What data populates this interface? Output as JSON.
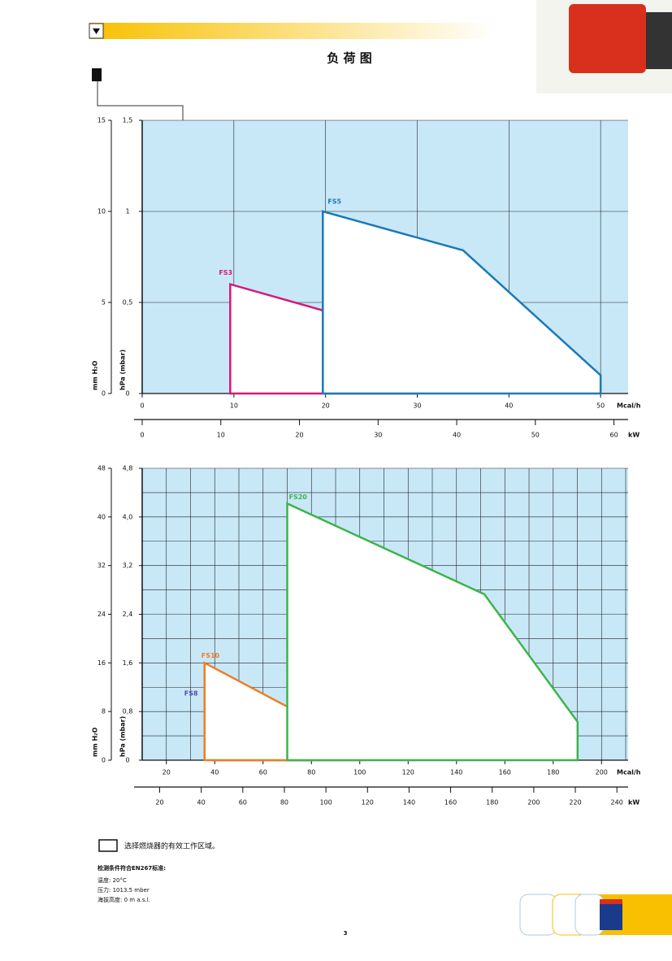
{
  "header": {
    "title": "负 荷 图"
  },
  "chart_data": [
    {
      "type": "line",
      "xlabel": "Mcal/h",
      "x2label": "kW",
      "ylabel": "hPa (mbar)",
      "y2label": "mm H₂O",
      "xlim": [
        0,
        53
      ],
      "xticks": [
        0,
        10,
        20,
        30,
        40,
        50
      ],
      "x2lim": [
        0,
        61.8
      ],
      "x2ticks": [
        0,
        10,
        20,
        30,
        40,
        50,
        60
      ],
      "ylim": [
        0,
        1.5
      ],
      "yticks": [
        0,
        {
          "value": 0.5,
          "label": "0,5"
        },
        1,
        {
          "value": 1.5,
          "label": "1,5"
        }
      ],
      "y2lim": [
        0,
        15
      ],
      "y2ticks": [
        0,
        5,
        10,
        15
      ],
      "grid": true,
      "background": "#c8e8f8",
      "series": [
        {
          "name": "FS3",
          "color": "#d4187c",
          "x": [
            9.6,
            9.6,
            30,
            30
          ],
          "values": [
            0,
            0.6,
            0.31,
            0
          ]
        },
        {
          "name": "FS5",
          "color": "#1a7ab8",
          "x": [
            19.7,
            19.7,
            35,
            50,
            50
          ],
          "values": [
            0,
            1.0,
            0.786,
            0.1,
            0
          ]
        }
      ]
    },
    {
      "type": "line",
      "xlabel": "Mcal/h",
      "x2label": "kW",
      "ylabel": "hPa (mbar)",
      "y2label": "mm H₂O",
      "xlim": [
        10,
        211
      ],
      "xticks": [
        20,
        40,
        60,
        80,
        100,
        120,
        140,
        160,
        180,
        200
      ],
      "x2lim": [
        11.6,
        245.4
      ],
      "x2ticks": [
        20,
        40,
        60,
        80,
        100,
        120,
        140,
        160,
        180,
        200,
        220,
        240
      ],
      "ylim": [
        0,
        4.8
      ],
      "yticks": [
        0,
        {
          "value": 0.8,
          "label": "0,8"
        },
        {
          "value": 1.6,
          "label": "1,6"
        },
        {
          "value": 2.4,
          "label": "2,4"
        },
        {
          "value": 3.2,
          "label": "3,2"
        },
        {
          "value": 4.0,
          "label": "4,0"
        },
        {
          "value": 4.8,
          "label": "4,8"
        }
      ],
      "y2lim": [
        0,
        48
      ],
      "y2ticks": [
        0,
        8,
        16,
        24,
        32,
        40,
        48
      ],
      "grid": "minor",
      "background": "#c8e8f8",
      "series": [
        {
          "name": "FS8",
          "color": "#5a4aa8",
          "x": [
            39.5,
            39.5,
            80,
            80
          ],
          "values": [
            0,
            1.12,
            0.43,
            0
          ]
        },
        {
          "name": "FS10",
          "color": "#f07c20",
          "x": [
            35.8,
            35.8,
            95.2,
            100.2,
            100.2
          ],
          "values": [
            0,
            1.6,
            0.35,
            0.09,
            0
          ]
        },
        {
          "name": "FS20",
          "color": "#3cb44a",
          "x": [
            70,
            70,
            151.5,
            190.1,
            190.1
          ],
          "values": [
            0,
            4.22,
            2.73,
            0.63,
            0
          ]
        }
      ]
    }
  ],
  "footer": {
    "legend_text": "选择燃烧器的有效工作区域。",
    "conditions_title": "检测条件符合EN267标准:",
    "conditions": [
      "温度: 20°C",
      "压力: 1013.5 mber",
      "海拔高度: 0 m a.s.l."
    ],
    "page": "3"
  }
}
